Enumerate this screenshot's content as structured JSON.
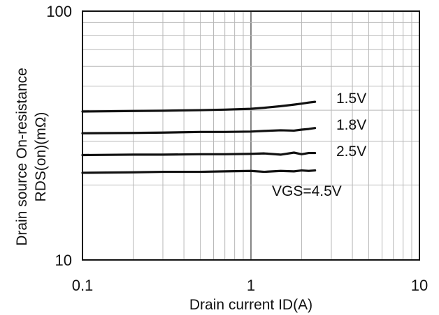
{
  "chart_data": {
    "type": "line",
    "title": "",
    "xlabel": "Drain current ID(A)",
    "ylabel_line1": "Drain source On-resistance",
    "ylabel_line2": "RDS(on)(mΩ)",
    "x_scale": "log",
    "y_scale": "log",
    "xlim": [
      0.1,
      10
    ],
    "ylim": [
      10,
      100
    ],
    "x_ticks": [
      {
        "value": 0.1,
        "label": "0.1"
      },
      {
        "value": 1,
        "label": "1"
      },
      {
        "value": 10,
        "label": "10"
      }
    ],
    "y_ticks": [
      {
        "value": 10,
        "label": "10"
      },
      {
        "value": 100,
        "label": "100"
      }
    ],
    "grid": true,
    "legend": "inline labels at right end of each series",
    "line_color": "#111111",
    "series": [
      {
        "name": "1.5V",
        "x": [
          0.1,
          0.2,
          0.3,
          0.5,
          0.7,
          1.0,
          1.2,
          1.5,
          1.8,
          2.0,
          2.2,
          2.4
        ],
        "y": [
          39.5,
          39.7,
          39.8,
          40.0,
          40.2,
          40.5,
          40.9,
          41.5,
          42.1,
          42.5,
          42.9,
          43.2
        ]
      },
      {
        "name": "1.8V",
        "x": [
          0.1,
          0.2,
          0.3,
          0.5,
          0.7,
          1.0,
          1.2,
          1.5,
          1.8,
          2.0,
          2.2,
          2.4
        ],
        "y": [
          32.3,
          32.4,
          32.5,
          32.7,
          32.7,
          32.8,
          33.0,
          33.2,
          33.1,
          33.4,
          33.6,
          33.9
        ]
      },
      {
        "name": "2.5V",
        "x": [
          0.1,
          0.2,
          0.3,
          0.5,
          0.7,
          1.0,
          1.2,
          1.5,
          1.8,
          2.0,
          2.2,
          2.4
        ],
        "y": [
          26.4,
          26.5,
          26.5,
          26.6,
          26.6,
          26.7,
          26.8,
          26.5,
          27.0,
          26.6,
          26.9,
          26.9
        ]
      },
      {
        "name": "VGS=4.5V",
        "x": [
          0.1,
          0.2,
          0.3,
          0.5,
          0.7,
          1.0,
          1.2,
          1.5,
          1.8,
          2.0,
          2.2,
          2.4
        ],
        "y": [
          22.4,
          22.5,
          22.6,
          22.6,
          22.7,
          22.8,
          22.6,
          22.8,
          22.7,
          22.9,
          22.8,
          22.9
        ]
      }
    ]
  }
}
